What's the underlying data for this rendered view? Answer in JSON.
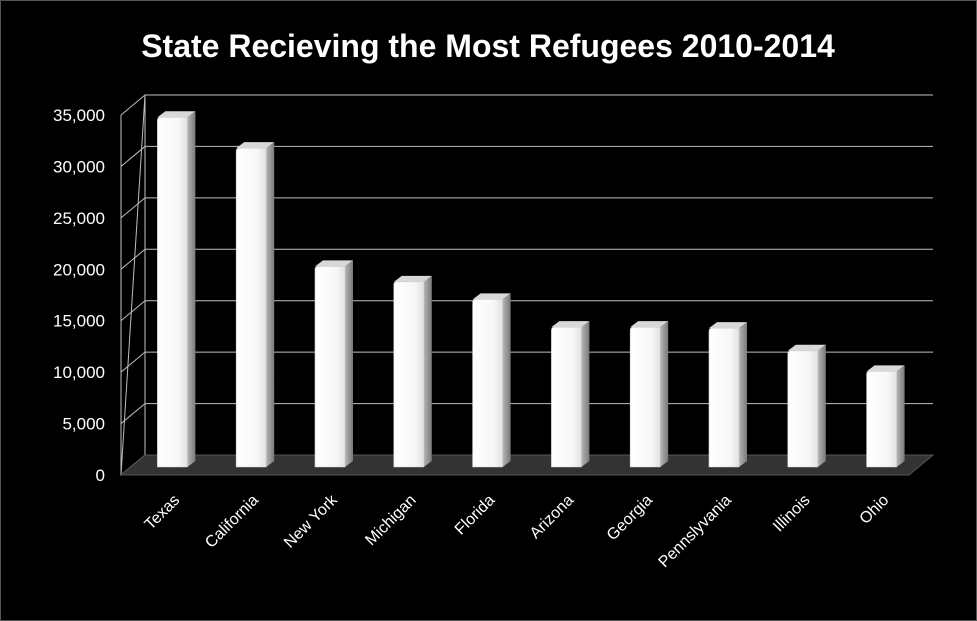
{
  "chart_data": {
    "type": "bar",
    "title": "State Recieving the Most Refugees 2010-2014",
    "xlabel": "",
    "ylabel": "",
    "ylim": [
      0,
      35000
    ],
    "y_ticks": [
      0,
      5000,
      10000,
      15000,
      20000,
      25000,
      30000,
      35000
    ],
    "y_tick_labels": [
      "0",
      "5,000",
      "10,000",
      "15,000",
      "20,000",
      "25,000",
      "30,000",
      "35,000"
    ],
    "categories": [
      "Texas",
      "California",
      "New York",
      "Michigan",
      "Florida",
      "Arizona",
      "Georgia",
      "Pennslyvania",
      "Illinois",
      "Ohio"
    ],
    "values": [
      34000,
      31000,
      19500,
      18000,
      16300,
      13600,
      13600,
      13500,
      11300,
      9300
    ],
    "grid": true,
    "legend": "none"
  },
  "colors": {
    "background": "#000000",
    "bar_face": "#ffffff",
    "bar_side": "#9a9a9a",
    "bar_top": "#d8d8d8",
    "floor": "#333333",
    "text": "#ffffff",
    "gridline": "#bfbfbf"
  }
}
